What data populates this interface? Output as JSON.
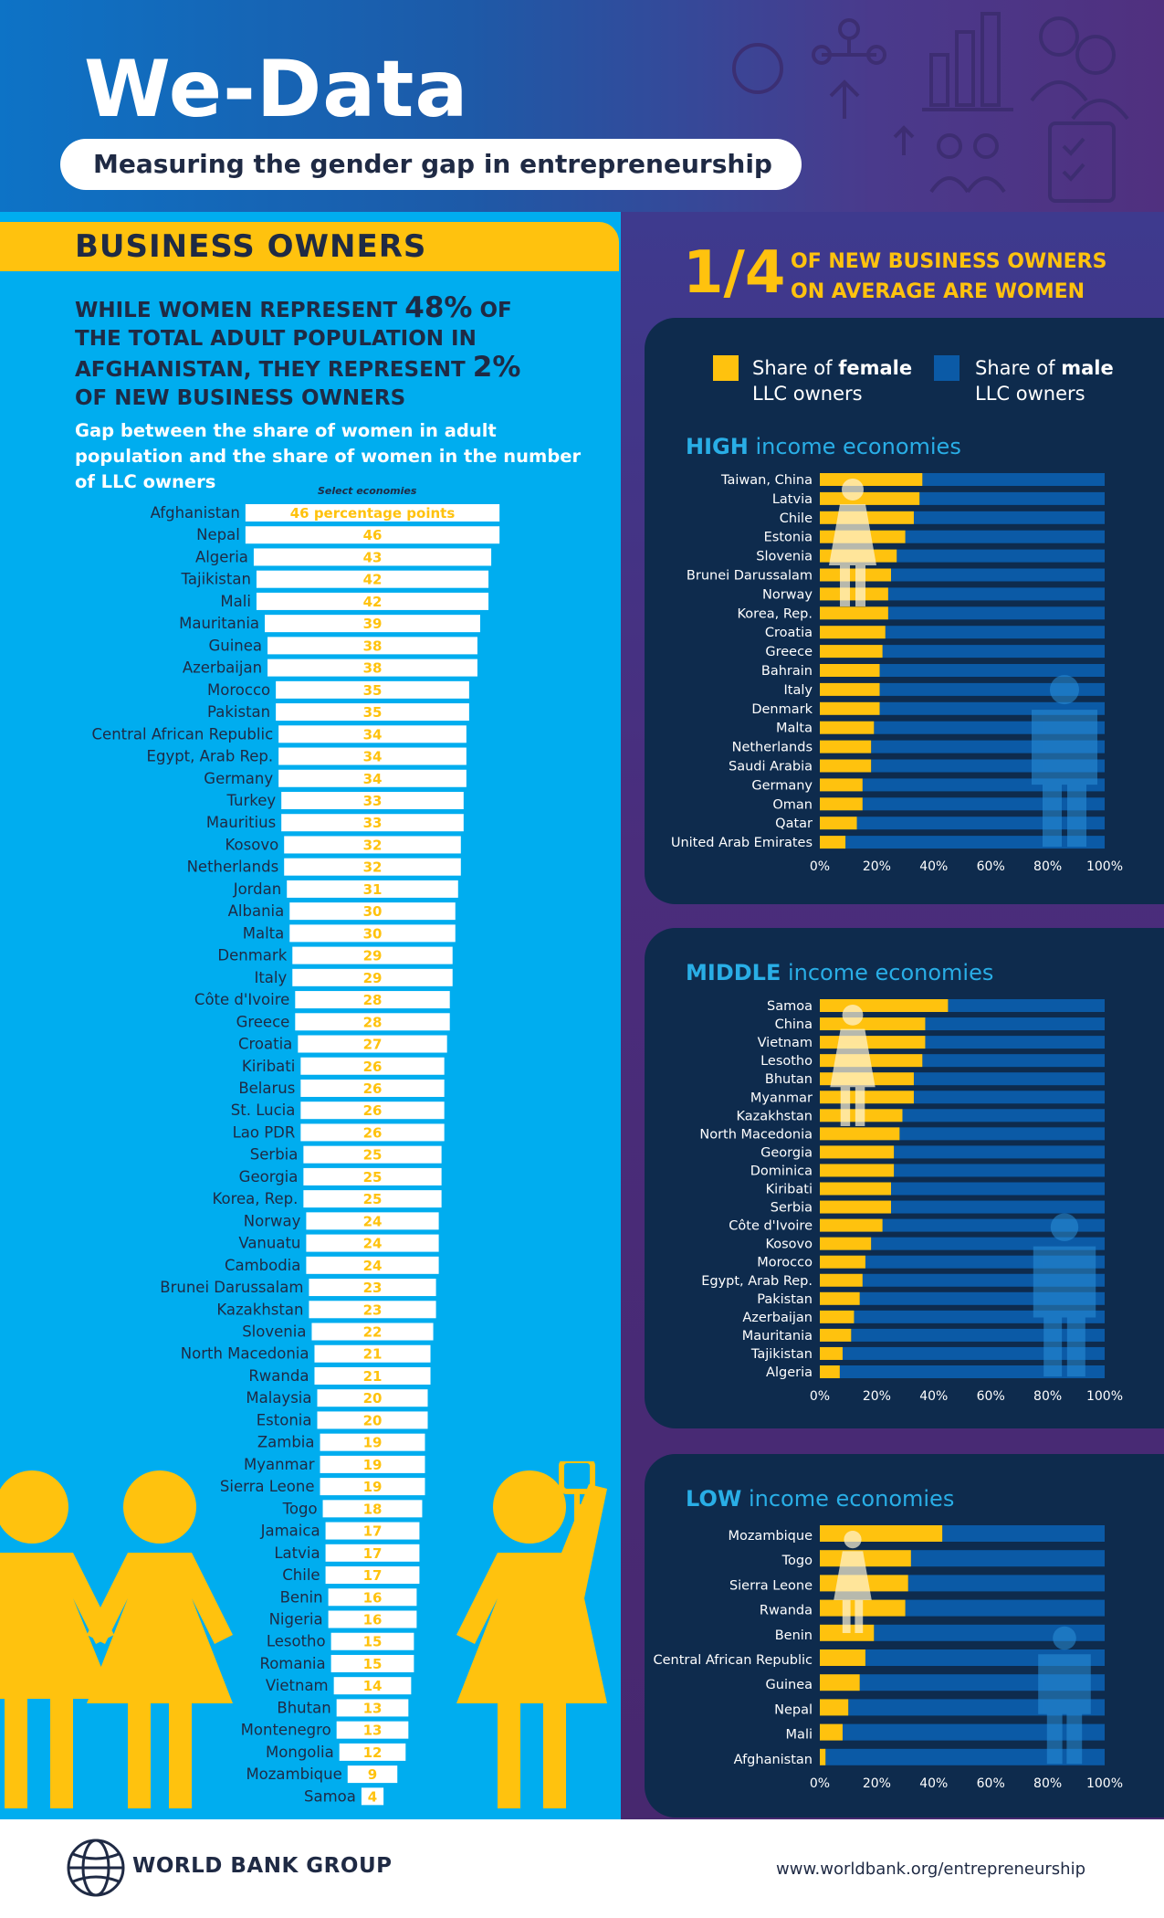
{
  "header": {
    "title": "We-Data",
    "subtitle": "Measuring the gender gap in entrepreneurship"
  },
  "left": {
    "section_label": "BUSINESS OWNERS",
    "headline_part1": "WHILE WOMEN REPRESENT ",
    "headline_pct_population": "48%",
    "headline_part2": " OF THE TOTAL ADULT POPULATION IN AFGHANISTAN, THEY REPRESENT ",
    "headline_pct_owners": "2%",
    "headline_part3": " OF NEW BUSINESS OWNERS",
    "gap_description": "Gap between the share of women in adult population and the share of women in the number of LLC owners",
    "select_label": "Select economies"
  },
  "right": {
    "fraction": "1/4",
    "fraction_text_1a": "OF ",
    "fraction_text_1b": "NEW BUSINESS OWNERS",
    "fraction_text_2a": "ON AVERAGE ARE ",
    "fraction_text_2b": "WOMEN",
    "legend_female_line1a": "Share of ",
    "legend_female_line1b": "female",
    "legend_female_line2": "LLC owners",
    "legend_male_line1a": "Share of ",
    "legend_male_line1b": "male",
    "legend_male_line2": "LLC owners",
    "high_title_a": "HIGH",
    "high_title_b": " income economies",
    "middle_title_a": "MIDDLE",
    "middle_title_b": " income economies",
    "low_title_a": "LOW",
    "low_title_b": " income economies"
  },
  "footer": {
    "org": "WORLD BANK GROUP",
    "url": "www.worldbank.org/entrepreneurship"
  },
  "colors": {
    "yellow": "#ffc20e",
    "cyan": "#00adef",
    "navy": "#0e2b4d",
    "male_blue": "#0b5aa6",
    "dark_text": "#1f2a44"
  },
  "chart_data": [
    {
      "type": "bar",
      "title": "Gap between the share of women in adult population and the share of women in the number of LLC owners",
      "orientation": "horizontal",
      "unit": "percentage points",
      "first_label_suffix": " percentage points",
      "categories": [
        "Afghanistan",
        "Nepal",
        "Algeria",
        "Tajikistan",
        "Mali",
        "Mauritania",
        "Guinea",
        "Azerbaijan",
        "Morocco",
        "Pakistan",
        "Central African Republic",
        "Egypt, Arab Rep.",
        "Germany",
        "Turkey",
        "Mauritius",
        "Kosovo",
        "Netherlands",
        "Jordan",
        "Albania",
        "Malta",
        "Denmark",
        "Italy",
        "Côte d'Ivoire",
        "Greece",
        "Croatia",
        "Kiribati",
        "Belarus",
        "St. Lucia",
        "Lao PDR",
        "Serbia",
        "Georgia",
        "Korea, Rep.",
        "Norway",
        "Vanuatu",
        "Cambodia",
        "Brunei Darussalam",
        "Kazakhstan",
        "Slovenia",
        "North Macedonia",
        "Rwanda",
        "Malaysia",
        "Estonia",
        "Zambia",
        "Myanmar",
        "Sierra Leone",
        "Togo",
        "Jamaica",
        "Latvia",
        "Chile",
        "Benin",
        "Nigeria",
        "Lesotho",
        "Romania",
        "Vietnam",
        "Bhutan",
        "Montenegro",
        "Mongolia",
        "Mozambique",
        "Samoa"
      ],
      "values": [
        46,
        46,
        43,
        42,
        42,
        39,
        38,
        38,
        35,
        35,
        34,
        34,
        34,
        33,
        33,
        32,
        32,
        31,
        30,
        30,
        29,
        29,
        28,
        28,
        27,
        26,
        26,
        26,
        26,
        25,
        25,
        25,
        24,
        24,
        24,
        23,
        23,
        22,
        21,
        21,
        20,
        20,
        19,
        19,
        19,
        18,
        17,
        17,
        17,
        16,
        16,
        15,
        15,
        14,
        13,
        13,
        12,
        9,
        4
      ]
    },
    {
      "type": "bar",
      "stacked": true,
      "title": "HIGH income economies",
      "categories": [
        "Taiwan, China",
        "Latvia",
        "Chile",
        "Estonia",
        "Slovenia",
        "Brunei Darussalam",
        "Norway",
        "Korea, Rep.",
        "Croatia",
        "Greece",
        "Bahrain",
        "Italy",
        "Denmark",
        "Malta",
        "Netherlands",
        "Saudi Arabia",
        "Germany",
        "Oman",
        "Qatar",
        "United Arab Emirates"
      ],
      "series": [
        {
          "name": "Share of female LLC owners",
          "values": [
            36,
            35,
            33,
            30,
            27,
            25,
            24,
            24,
            23,
            22,
            21,
            21,
            21,
            19,
            18,
            18,
            15,
            15,
            13,
            9
          ]
        },
        {
          "name": "Share of male LLC owners",
          "values": [
            64,
            65,
            67,
            70,
            73,
            75,
            76,
            76,
            77,
            78,
            79,
            79,
            79,
            81,
            82,
            82,
            85,
            85,
            87,
            91
          ]
        }
      ],
      "xticks": [
        "0%",
        "20%",
        "40%",
        "60%",
        "80%",
        "100%"
      ],
      "xlim": [
        0,
        100
      ]
    },
    {
      "type": "bar",
      "stacked": true,
      "title": "MIDDLE income economies",
      "categories": [
        "Samoa",
        "China",
        "Vietnam",
        "Lesotho",
        "Bhutan",
        "Myanmar",
        "Kazakhstan",
        "North Macedonia",
        "Georgia",
        "Dominica",
        "Kiribati",
        "Serbia",
        "Côte d'Ivoire",
        "Kosovo",
        "Morocco",
        "Egypt, Arab Rep.",
        "Pakistan",
        "Azerbaijan",
        "Mauritania",
        "Tajikistan",
        "Algeria"
      ],
      "series": [
        {
          "name": "Share of female LLC owners",
          "values": [
            45,
            37,
            37,
            36,
            33,
            33,
            29,
            28,
            26,
            26,
            25,
            25,
            22,
            18,
            16,
            15,
            14,
            12,
            11,
            8,
            7
          ]
        },
        {
          "name": "Share of male LLC owners",
          "values": [
            55,
            63,
            63,
            64,
            67,
            67,
            71,
            72,
            74,
            74,
            75,
            75,
            78,
            82,
            84,
            85,
            86,
            88,
            89,
            92,
            93
          ]
        }
      ],
      "xticks": [
        "0%",
        "20%",
        "40%",
        "60%",
        "80%",
        "100%"
      ],
      "xlim": [
        0,
        100
      ]
    },
    {
      "type": "bar",
      "stacked": true,
      "title": "LOW income economies",
      "categories": [
        "Mozambique",
        "Togo",
        "Sierra Leone",
        "Rwanda",
        "Benin",
        "Central African Republic",
        "Guinea",
        "Nepal",
        "Mali",
        "Afghanistan"
      ],
      "series": [
        {
          "name": "Share of female LLC owners",
          "values": [
            43,
            32,
            31,
            30,
            19,
            16,
            14,
            10,
            8,
            2
          ]
        },
        {
          "name": "Share of male LLC owners",
          "values": [
            57,
            68,
            69,
            70,
            81,
            84,
            86,
            90,
            92,
            98
          ]
        }
      ],
      "xticks": [
        "0%",
        "20%",
        "40%",
        "60%",
        "80%",
        "100%"
      ],
      "xlim": [
        0,
        100
      ]
    }
  ]
}
